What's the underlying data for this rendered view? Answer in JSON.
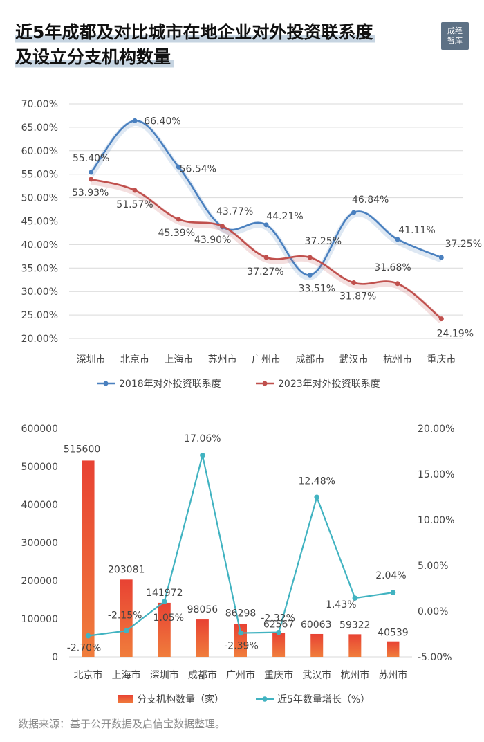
{
  "title": {
    "line1": "近5年成都及对比城市在地企业对外投资联系度",
    "line2": "及设立分支机构数量"
  },
  "logo": {
    "line1": "成经",
    "line2": "智库"
  },
  "source": "数据来源：基于公开数据及启信宝数据整理。",
  "colors": {
    "blue": "#4a80bf",
    "red": "#c0504d",
    "orange": "#f07d3c",
    "teal": "#41b3c1"
  },
  "chart_data": [
    {
      "type": "line",
      "categories": [
        "深圳市",
        "北京市",
        "上海市",
        "苏州市",
        "广州市",
        "成都市",
        "武汉市",
        "杭州市",
        "重庆市"
      ],
      "series": [
        {
          "name": "2018年对外投资联系度",
          "values": [
            55.4,
            66.4,
            56.54,
            43.77,
            44.21,
            33.51,
            46.84,
            41.11,
            37.25
          ],
          "labels": [
            "55.40%",
            "66.40%",
            "56.54%",
            "43.77%",
            "44.21%",
            "33.51%",
            "46.84%",
            "41.11%",
            "37.25%"
          ]
        },
        {
          "name": "2023年对外投资联系度",
          "values": [
            53.93,
            51.57,
            45.39,
            43.9,
            37.27,
            37.25,
            31.87,
            31.68,
            24.19
          ],
          "labels": [
            "53.93%",
            "51.57%",
            "45.39%",
            "43.90%",
            "37.27%",
            "37.25%",
            "31.87%",
            "31.68%",
            "24.19%"
          ]
        }
      ],
      "ylim": [
        20,
        70
      ],
      "yticks": [
        "20.00%",
        "25.00%",
        "30.00%",
        "35.00%",
        "40.00%",
        "45.00%",
        "50.00%",
        "55.00%",
        "60.00%",
        "65.00%",
        "70.00%"
      ],
      "grid": true,
      "legend": "bottom"
    },
    {
      "type": "bar",
      "categories": [
        "北京市",
        "上海市",
        "深圳市",
        "成都市",
        "广州市",
        "重庆市",
        "武汉市",
        "杭州市",
        "苏州市"
      ],
      "series": [
        {
          "name": "分支机构数量（家）",
          "type": "bar",
          "axis": "left",
          "values": [
            515600,
            203081,
            141972,
            98056,
            86298,
            62567,
            60063,
            59322,
            40539
          ],
          "labels": [
            "515600",
            "203081",
            "141972",
            "98056",
            "86298",
            "62567",
            "60063",
            "59322",
            "40539"
          ]
        },
        {
          "name": "近5年数量增长（%）",
          "type": "line",
          "axis": "right",
          "values": [
            -2.7,
            -2.15,
            1.05,
            17.06,
            -2.39,
            -2.32,
            12.48,
            1.43,
            2.04
          ],
          "labels": [
            "-2.70%",
            "-2.15%",
            "1.05%",
            "17.06%",
            "-2.39%",
            "-2.32%",
            "12.48%",
            "1.43%",
            "2.04%"
          ]
        }
      ],
      "ylim_left": [
        0,
        600000
      ],
      "yticks_left": [
        "0",
        "100000",
        "200000",
        "300000",
        "400000",
        "500000",
        "600000"
      ],
      "ylim_right": [
        -5,
        20
      ],
      "yticks_right": [
        "-5.00%",
        "0.00%",
        "5.00%",
        "10.00%",
        "15.00%",
        "20.00%"
      ],
      "grid": false,
      "legend": "bottom"
    }
  ]
}
